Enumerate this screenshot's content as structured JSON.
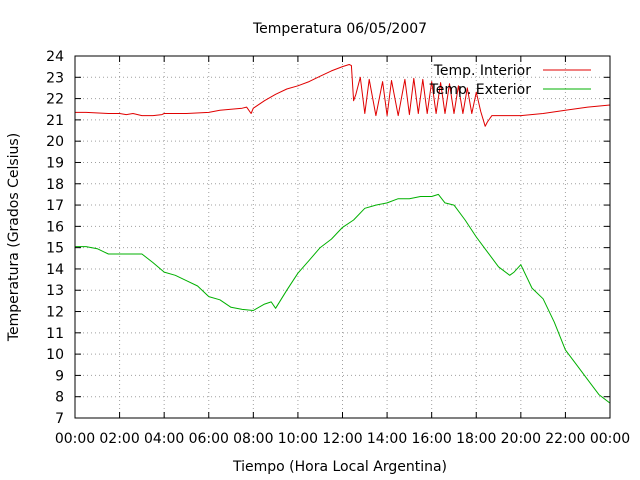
{
  "chart_data": {
    "type": "line",
    "title": "Temperatura 06/05/2007",
    "xlabel": "Tiempo (Hora Local Argentina)",
    "ylabel": "Temperatura (Grados Celsius)",
    "xlim": [
      0,
      24
    ],
    "ylim": [
      7,
      24
    ],
    "grid": true,
    "legend_position": "top-right",
    "x_ticks": [
      {
        "value": 0,
        "label": "00:00"
      },
      {
        "value": 2,
        "label": "02:00"
      },
      {
        "value": 4,
        "label": "04:00"
      },
      {
        "value": 6,
        "label": "06:00"
      },
      {
        "value": 8,
        "label": "08:00"
      },
      {
        "value": 10,
        "label": "10:00"
      },
      {
        "value": 12,
        "label": "12:00"
      },
      {
        "value": 14,
        "label": "14:00"
      },
      {
        "value": 16,
        "label": "16:00"
      },
      {
        "value": 18,
        "label": "18:00"
      },
      {
        "value": 20,
        "label": "20:00"
      },
      {
        "value": 22,
        "label": "22:00"
      },
      {
        "value": 24,
        "label": "00:00"
      }
    ],
    "y_ticks": [
      "7",
      "8",
      "9",
      "10",
      "11",
      "12",
      "13",
      "14",
      "15",
      "16",
      "17",
      "18",
      "19",
      "20",
      "21",
      "22",
      "23",
      "24"
    ],
    "series": [
      {
        "name": "Temp. Interior",
        "color": "#e00000",
        "x": [
          0,
          0.5,
          1.5,
          2.0,
          2.3,
          2.6,
          3.0,
          3.5,
          3.9,
          4.0,
          5.0,
          6.0,
          6.5,
          7.0,
          7.5,
          7.7,
          7.9,
          8.0,
          8.5,
          9.0,
          9.5,
          10.0,
          10.5,
          11.0,
          11.5,
          12.0,
          12.3,
          12.4,
          12.5,
          12.6,
          12.8,
          13.0,
          13.2,
          13.5,
          13.8,
          14.0,
          14.2,
          14.5,
          14.8,
          15.0,
          15.2,
          15.4,
          15.6,
          15.8,
          16.0,
          16.2,
          16.4,
          16.6,
          16.8,
          17.0,
          17.2,
          17.4,
          17.6,
          17.8,
          18.0,
          18.2,
          18.4,
          18.5,
          18.7,
          19.0,
          20.0,
          21.0,
          22.0,
          23.0,
          24.0
        ],
        "y": [
          21.35,
          21.35,
          21.3,
          21.3,
          21.25,
          21.3,
          21.2,
          21.2,
          21.25,
          21.3,
          21.3,
          21.35,
          21.45,
          21.5,
          21.55,
          21.6,
          21.3,
          21.55,
          21.9,
          22.2,
          22.45,
          22.6,
          22.8,
          23.05,
          23.3,
          23.5,
          23.6,
          23.55,
          21.9,
          22.2,
          23.0,
          21.3,
          22.9,
          21.2,
          22.8,
          21.2,
          22.85,
          21.2,
          22.9,
          21.25,
          22.95,
          21.3,
          22.9,
          21.3,
          22.8,
          21.3,
          22.75,
          21.3,
          22.7,
          21.3,
          22.6,
          21.3,
          22.5,
          21.3,
          22.3,
          21.4,
          20.7,
          20.9,
          21.2,
          21.2,
          21.2,
          21.3,
          21.45,
          21.6,
          21.7
        ]
      },
      {
        "name": "Temp. Exterior",
        "color": "#00b000",
        "x": [
          0,
          0.5,
          1.0,
          1.3,
          1.5,
          2.0,
          3.0,
          3.5,
          4.0,
          4.5,
          5.0,
          5.5,
          6.0,
          6.5,
          7.0,
          7.5,
          8.0,
          8.5,
          8.8,
          9.0,
          9.5,
          10.0,
          10.5,
          11.0,
          11.5,
          12.0,
          12.5,
          13.0,
          13.5,
          14.0,
          14.5,
          15.0,
          15.5,
          16.0,
          16.3,
          16.6,
          17.0,
          17.5,
          18.0,
          18.5,
          19.0,
          19.5,
          19.7,
          20.0,
          20.5,
          21.0,
          21.5,
          22.0,
          22.5,
          23.0,
          23.5,
          24.0
        ],
        "y": [
          15.05,
          15.05,
          14.95,
          14.8,
          14.7,
          14.7,
          14.7,
          14.3,
          13.85,
          13.7,
          13.45,
          13.2,
          12.7,
          12.55,
          12.2,
          12.1,
          12.05,
          12.35,
          12.45,
          12.15,
          13.0,
          13.8,
          14.4,
          15.0,
          15.4,
          15.95,
          16.3,
          16.85,
          17.0,
          17.1,
          17.3,
          17.3,
          17.4,
          17.4,
          17.5,
          17.1,
          17.0,
          16.3,
          15.5,
          14.8,
          14.1,
          13.7,
          13.85,
          14.2,
          13.1,
          12.6,
          11.5,
          10.2,
          9.5,
          8.8,
          8.1,
          7.7
        ]
      }
    ]
  }
}
